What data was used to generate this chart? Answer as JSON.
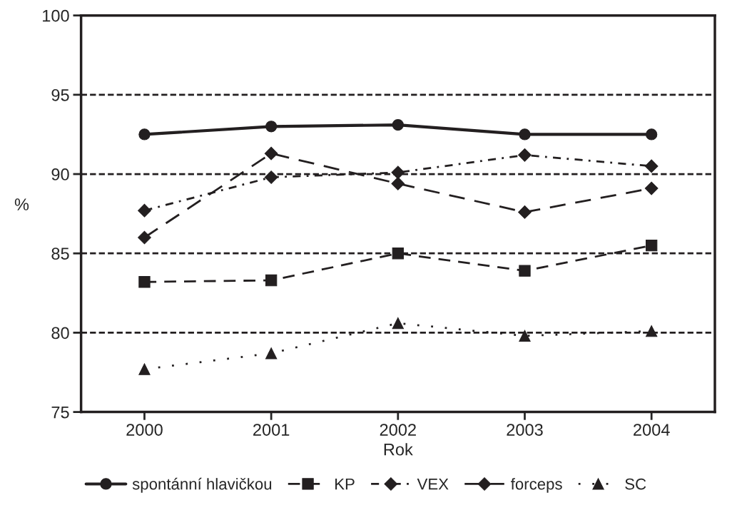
{
  "chart_data": {
    "type": "line",
    "xlabel": "Rok",
    "ylabel": "%",
    "categories": [
      "2000",
      "2001",
      "2002",
      "2003",
      "2004"
    ],
    "ylim": [
      75,
      100
    ],
    "yticks": [
      75,
      80,
      85,
      90,
      95,
      100
    ],
    "grid": "y",
    "legend": "bottom",
    "series": [
      {
        "name": "spontánní hlavičkou",
        "color": "#231f20",
        "marker": "circle",
        "line_style": "solid",
        "values": [
          92.5,
          93.0,
          93.1,
          92.5,
          92.5
        ]
      },
      {
        "name": "KP",
        "color": "#231f20",
        "marker": "square",
        "line_style": "dashed",
        "values": [
          83.2,
          83.3,
          85.0,
          83.9,
          85.5
        ]
      },
      {
        "name": "VEX",
        "color": "#231f20",
        "marker": "diamond",
        "line_style": "dashed",
        "values": [
          87.7,
          89.8,
          90.1,
          91.2,
          90.5
        ]
      },
      {
        "name": "forceps",
        "color": "#231f20",
        "marker": "diamond",
        "line_style": "dashed",
        "values": [
          86.0,
          91.3,
          89.4,
          87.6,
          89.1
        ]
      },
      {
        "name": "SC",
        "color": "#231f20",
        "marker": "triangle",
        "line_style": "dotted",
        "values": [
          77.7,
          78.7,
          80.6,
          79.8,
          80.1
        ]
      }
    ]
  }
}
